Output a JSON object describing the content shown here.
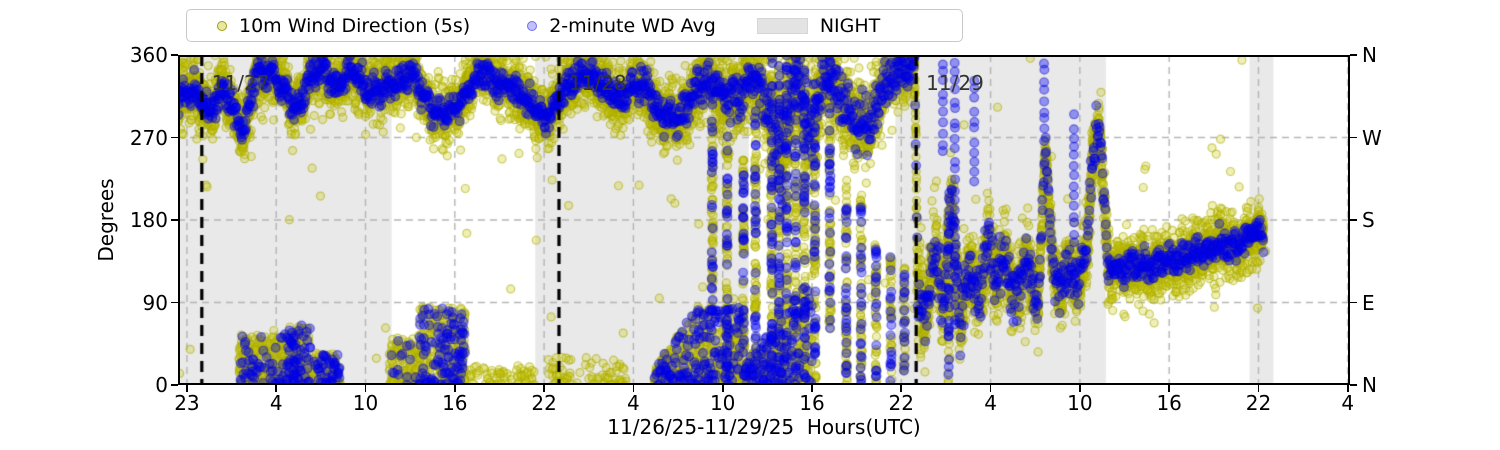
{
  "figure": {
    "kind": "matplotlib-style scatter figure",
    "background": "#ffffff"
  },
  "legend": {
    "items": [
      {
        "label": "10m Wind Direction (5s)",
        "marker": "dot",
        "color": "#bfbf00"
      },
      {
        "label": "2-minute WD Avg",
        "marker": "dot",
        "color": "#0000f0"
      },
      {
        "label": "NIGHT",
        "marker": "patch",
        "color": "#e8e8e8"
      }
    ]
  },
  "chart_data": {
    "type": "scatter",
    "title": "",
    "xlabel": "11/26/25-11/29/25  Hours(UTC)",
    "ylabel": "Degrees",
    "ylim": [
      0,
      360
    ],
    "grid": true,
    "legend_position": "top-left, horizontal",
    "x_axis_note": "hour-of-day labels (UTC), major ticks every 6 hours across 11/26/25 evening through 11/30/25 04:00",
    "x_ticks": [
      {
        "pos": 22,
        "label": "23"
      },
      {
        "pos": 28,
        "label": "4"
      },
      {
        "pos": 34,
        "label": "10"
      },
      {
        "pos": 40,
        "label": "16"
      },
      {
        "pos": 46,
        "label": "22"
      },
      {
        "pos": 52,
        "label": "4"
      },
      {
        "pos": 58,
        "label": "10"
      },
      {
        "pos": 64,
        "label": "16"
      },
      {
        "pos": 70,
        "label": "22"
      },
      {
        "pos": 76,
        "label": "4"
      },
      {
        "pos": 82,
        "label": "10"
      },
      {
        "pos": 88,
        "label": "16"
      },
      {
        "pos": 94,
        "label": "22"
      },
      {
        "pos": 100,
        "label": "4"
      }
    ],
    "xlim": [
      21.4,
      100.15
    ],
    "y_ticks_left": [
      {
        "value": 360,
        "label": "360"
      },
      {
        "value": 270,
        "label": "270"
      },
      {
        "value": 180,
        "label": "180"
      },
      {
        "value": 90,
        "label": "90"
      },
      {
        "value": 0,
        "label": "0"
      }
    ],
    "y_ticks_right": [
      {
        "value": 360,
        "label": "N"
      },
      {
        "value": 270,
        "label": "W"
      },
      {
        "value": 180,
        "label": "S"
      },
      {
        "value": 90,
        "label": "E"
      },
      {
        "value": 0,
        "label": "N"
      }
    ],
    "y_gridlines": [
      90,
      180,
      270
    ],
    "night_bands": [
      [
        21.4,
        35.75
      ],
      [
        45.4,
        59.75
      ],
      [
        69.6,
        83.75
      ],
      [
        93.4,
        95.0
      ]
    ],
    "day_lines": [
      {
        "pos": 23,
        "label": "11/27"
      },
      {
        "pos": 47,
        "label": "11/28"
      },
      {
        "pos": 71,
        "label": "11/29"
      }
    ],
    "series": [
      {
        "name": "10m Wind Direction (5s)",
        "color": "#bfbf00",
        "alpha": 0.3,
        "cadence_s": 5
      },
      {
        "name": "2-minute WD Avg",
        "color": "#0000f0",
        "alpha": 0.4,
        "cadence_s": 120
      },
      {
        "name": "NIGHT",
        "color": "#e8e8e8",
        "type": "shading"
      }
    ],
    "data_start": 21.4,
    "data_end": 94.35,
    "wind_track_note": "keyframes [axis_pos, mean_direction_deg, avg_halfspread_deg, raw_halfspread_deg] traced from plot; NW winds 11/26-11/28, chaotic shift overnight 11/29, SE winds after",
    "wind_track": [
      [
        21.4,
        310,
        20,
        45
      ],
      [
        22.5,
        320,
        20,
        45
      ],
      [
        23.5,
        300,
        18,
        40
      ],
      [
        24.4,
        325,
        20,
        45
      ],
      [
        25.2,
        298,
        18,
        42
      ],
      [
        25.9,
        278,
        15,
        40
      ],
      [
        26.6,
        335,
        22,
        45
      ],
      [
        27.6,
        347,
        18,
        40
      ],
      [
        28.5,
        322,
        18,
        40
      ],
      [
        29.3,
        300,
        15,
        38
      ],
      [
        30.2,
        335,
        20,
        42
      ],
      [
        31.2,
        345,
        16,
        40
      ],
      [
        32,
        328,
        18,
        42
      ],
      [
        33,
        340,
        18,
        40
      ],
      [
        34,
        328,
        18,
        42
      ],
      [
        35,
        318,
        18,
        42
      ],
      [
        36,
        332,
        18,
        42
      ],
      [
        37,
        342,
        16,
        40
      ],
      [
        38.2,
        308,
        18,
        42
      ],
      [
        39.2,
        290,
        15,
        40
      ],
      [
        40,
        302,
        16,
        40
      ],
      [
        41,
        330,
        18,
        42
      ],
      [
        42,
        342,
        16,
        40
      ],
      [
        43,
        330,
        18,
        42
      ],
      [
        44,
        320,
        18,
        42
      ],
      [
        45.2,
        308,
        18,
        40
      ],
      [
        46,
        286,
        15,
        38
      ],
      [
        47,
        318,
        20,
        42
      ],
      [
        48,
        332,
        18,
        42
      ],
      [
        49,
        342,
        16,
        40
      ],
      [
        50,
        326,
        18,
        42
      ],
      [
        51,
        310,
        18,
        42
      ],
      [
        52,
        330,
        18,
        40
      ],
      [
        53,
        318,
        20,
        45
      ],
      [
        54,
        295,
        22,
        48
      ],
      [
        55,
        288,
        22,
        48
      ],
      [
        56,
        320,
        22,
        48
      ],
      [
        57,
        330,
        25,
        50
      ],
      [
        58,
        318,
        25,
        55
      ],
      [
        59,
        308,
        28,
        55
      ],
      [
        60,
        338,
        25,
        55
      ],
      [
        61,
        300,
        40,
        70
      ],
      [
        62,
        250,
        60,
        90
      ],
      [
        62.8,
        330,
        40,
        70
      ],
      [
        63.8,
        280,
        50,
        80
      ],
      [
        64.8,
        335,
        30,
        60
      ],
      [
        65.8,
        315,
        30,
        60
      ],
      [
        66.8,
        295,
        35,
        65
      ],
      [
        67.8,
        278,
        35,
        65
      ],
      [
        68.8,
        330,
        30,
        55
      ],
      [
        70,
        342,
        25,
        50
      ],
      [
        70.9,
        350,
        20,
        45
      ],
      [
        71.1,
        120,
        60,
        80
      ],
      [
        71.6,
        60,
        40,
        60
      ],
      [
        72.2,
        150,
        50,
        70
      ],
      [
        72.8,
        90,
        40,
        60
      ],
      [
        73.4,
        200,
        40,
        60
      ],
      [
        74,
        60,
        35,
        55
      ],
      [
        74.6,
        130,
        40,
        60
      ],
      [
        75.2,
        90,
        35,
        55
      ],
      [
        75.8,
        160,
        45,
        60
      ],
      [
        76.4,
        110,
        40,
        55
      ],
      [
        77,
        150,
        40,
        55
      ],
      [
        77.6,
        95,
        35,
        50
      ],
      [
        78.3,
        135,
        35,
        55
      ],
      [
        79.2,
        85,
        30,
        50
      ],
      [
        79.7,
        268,
        12,
        22
      ],
      [
        80.2,
        120,
        35,
        55
      ],
      [
        80.8,
        100,
        30,
        50
      ],
      [
        81.3,
        135,
        35,
        50
      ],
      [
        81.9,
        110,
        30,
        50
      ],
      [
        82.5,
        150,
        35,
        50
      ],
      [
        82.9,
        250,
        40,
        60
      ],
      [
        83.3,
        285,
        25,
        45
      ],
      [
        83.9,
        130,
        30,
        50
      ],
      [
        84.3,
        128,
        18,
        45
      ],
      [
        85,
        122,
        18,
        45
      ],
      [
        86,
        135,
        18,
        45
      ],
      [
        87,
        128,
        18,
        45
      ],
      [
        88,
        140,
        18,
        45
      ],
      [
        89,
        136,
        18,
        45
      ],
      [
        90,
        146,
        18,
        45
      ],
      [
        91,
        150,
        18,
        45
      ],
      [
        92,
        152,
        18,
        45
      ],
      [
        93,
        158,
        18,
        42
      ],
      [
        94,
        163,
        18,
        42
      ],
      [
        94.35,
        166,
        18,
        40
      ]
    ],
    "low_wind_clusters_note": "[start, end, deg_lo, deg_hi, n_raw, n_avg, rising]",
    "low_wind_clusters": [
      [
        25.5,
        28.5,
        0,
        55,
        260,
        50,
        0
      ],
      [
        28.5,
        30.3,
        0,
        65,
        160,
        70,
        0
      ],
      [
        30.5,
        32.3,
        0,
        35,
        90,
        45,
        0
      ],
      [
        35.6,
        37.6,
        0,
        55,
        150,
        15,
        0
      ],
      [
        37.6,
        40.7,
        0,
        85,
        300,
        120,
        0
      ],
      [
        40.7,
        45.4,
        0,
        22,
        70,
        0,
        0
      ],
      [
        46.3,
        51.5,
        0,
        30,
        80,
        0,
        0
      ],
      [
        53.4,
        56.5,
        0,
        90,
        240,
        80,
        1
      ],
      [
        56.5,
        59.5,
        0,
        85,
        220,
        90,
        0
      ],
      [
        59.5,
        64,
        0,
        120,
        300,
        130,
        1
      ]
    ],
    "streaks_note": "vertical direction-swing streaks [pos, deg_lo, deg_hi, kind 0=raw+avg 1=avg-only]",
    "streaks": [
      [
        57.3,
        80,
        300,
        0
      ],
      [
        58.3,
        10,
        280,
        0
      ],
      [
        59.4,
        0,
        250,
        0
      ],
      [
        60.2,
        30,
        300,
        0
      ],
      [
        61.3,
        0,
        360,
        0
      ],
      [
        61.8,
        0,
        360,
        0
      ],
      [
        62.3,
        0,
        360,
        0
      ],
      [
        62.9,
        0,
        360,
        0
      ],
      [
        63.5,
        0,
        360,
        0
      ],
      [
        64.2,
        0,
        310,
        0
      ],
      [
        65.2,
        60,
        360,
        0
      ],
      [
        66.3,
        0,
        230,
        0
      ],
      [
        67.3,
        0,
        210,
        0
      ],
      [
        68.3,
        0,
        160,
        0
      ],
      [
        69.3,
        0,
        140,
        0
      ],
      [
        70.2,
        0,
        130,
        0
      ],
      [
        72.8,
        250,
        360,
        1
      ],
      [
        73.2,
        0,
        210,
        0
      ],
      [
        73.6,
        60,
        360,
        1
      ],
      [
        74.9,
        220,
        340,
        1
      ],
      [
        79.6,
        265,
        360,
        1
      ],
      [
        81.6,
        150,
        300,
        1
      ]
    ],
    "colors": {
      "raw_dot_fill": "rgba(197,197,0,0.28)",
      "raw_dot_edge": "rgba(170,170,0,0.55)",
      "avg_dot_fill": "rgba(0,0,244,0.38)",
      "avg_dot_edge": "rgba(0,0,210,0.45)",
      "night_shade": "#e9e9e9",
      "gridline": "#b5b5b5",
      "day_line": "#000000",
      "day_label": "#333333"
    }
  }
}
